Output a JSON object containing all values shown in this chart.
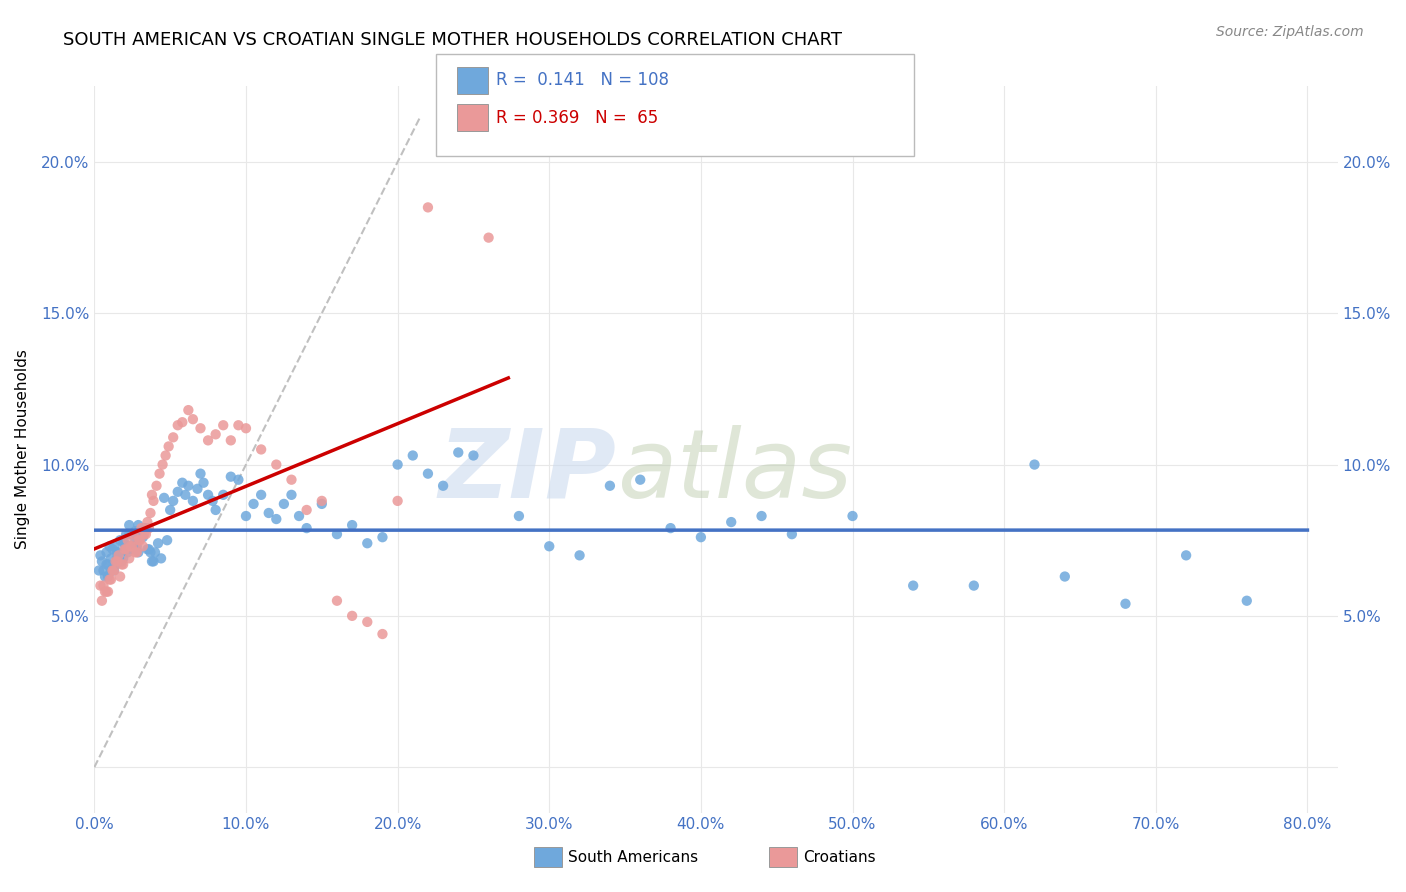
{
  "title": "SOUTH AMERICAN VS CROATIAN SINGLE MOTHER HOUSEHOLDS CORRELATION CHART",
  "source": "Source: ZipAtlas.com",
  "ylabel": "Single Mother Households",
  "south_american_color": "#6fa8dc",
  "croatian_color": "#ea9999",
  "trend_sa_color": "#4472c4",
  "trend_cr_color": "#cc0000",
  "diagonal_color": "#c0c0c0",
  "background_color": "#ffffff",
  "grid_color": "#e8e8e8",
  "xlim": [
    0,
    0.82
  ],
  "ylim": [
    -0.015,
    0.225
  ],
  "xticks": [
    0.0,
    0.1,
    0.2,
    0.3,
    0.4,
    0.5,
    0.6,
    0.7,
    0.8
  ],
  "yticks": [
    0.0,
    0.05,
    0.1,
    0.15,
    0.2
  ],
  "xtick_labels": [
    "0.0%",
    "10.0%",
    "20.0%",
    "30.0%",
    "40.0%",
    "50.0%",
    "60.0%",
    "70.0%",
    "80.0%"
  ],
  "ytick_labels": [
    "",
    "5.0%",
    "10.0%",
    "15.0%",
    "20.0%"
  ],
  "tick_color": "#4472c4",
  "R_sa": 0.141,
  "N_sa": 108,
  "R_cr": 0.369,
  "N_cr": 65,
  "south_americans_x": [
    0.005,
    0.006,
    0.007,
    0.008,
    0.009,
    0.01,
    0.011,
    0.012,
    0.013,
    0.014,
    0.015,
    0.016,
    0.017,
    0.018,
    0.019,
    0.02,
    0.021,
    0.022,
    0.023,
    0.024,
    0.025,
    0.026,
    0.027,
    0.028,
    0.029,
    0.03,
    0.031,
    0.032,
    0.033,
    0.034,
    0.035,
    0.036,
    0.037,
    0.038,
    0.039,
    0.04,
    0.042,
    0.044,
    0.046,
    0.048,
    0.05,
    0.052,
    0.055,
    0.058,
    0.06,
    0.062,
    0.065,
    0.068,
    0.07,
    0.072,
    0.075,
    0.078,
    0.08,
    0.085,
    0.09,
    0.095,
    0.1,
    0.105,
    0.11,
    0.115,
    0.12,
    0.125,
    0.13,
    0.135,
    0.14,
    0.15,
    0.16,
    0.17,
    0.18,
    0.19,
    0.2,
    0.21,
    0.22,
    0.23,
    0.24,
    0.25,
    0.28,
    0.3,
    0.32,
    0.34,
    0.36,
    0.38,
    0.4,
    0.42,
    0.44,
    0.46,
    0.5,
    0.54,
    0.58,
    0.62,
    0.64,
    0.68,
    0.72,
    0.76,
    0.003,
    0.004,
    0.008,
    0.009,
    0.011,
    0.013,
    0.015,
    0.017,
    0.019,
    0.021,
    0.023,
    0.025,
    0.027,
    0.029
  ],
  "south_americans_y": [
    0.068,
    0.065,
    0.063,
    0.071,
    0.067,
    0.073,
    0.069,
    0.072,
    0.065,
    0.067,
    0.069,
    0.071,
    0.068,
    0.068,
    0.074,
    0.074,
    0.072,
    0.071,
    0.077,
    0.073,
    0.077,
    0.073,
    0.078,
    0.073,
    0.08,
    0.078,
    0.077,
    0.076,
    0.079,
    0.079,
    0.072,
    0.072,
    0.071,
    0.068,
    0.068,
    0.071,
    0.074,
    0.069,
    0.089,
    0.075,
    0.085,
    0.088,
    0.091,
    0.094,
    0.09,
    0.093,
    0.088,
    0.092,
    0.097,
    0.094,
    0.09,
    0.088,
    0.085,
    0.09,
    0.096,
    0.095,
    0.083,
    0.087,
    0.09,
    0.084,
    0.082,
    0.087,
    0.09,
    0.083,
    0.079,
    0.087,
    0.077,
    0.08,
    0.074,
    0.076,
    0.1,
    0.103,
    0.097,
    0.093,
    0.104,
    0.103,
    0.083,
    0.073,
    0.07,
    0.093,
    0.095,
    0.079,
    0.076,
    0.081,
    0.083,
    0.077,
    0.083,
    0.06,
    0.06,
    0.1,
    0.063,
    0.054,
    0.07,
    0.055,
    0.065,
    0.07,
    0.067,
    0.063,
    0.065,
    0.073,
    0.071,
    0.075,
    0.069,
    0.077,
    0.08,
    0.072,
    0.075,
    0.071
  ],
  "croatians_x": [
    0.004,
    0.005,
    0.006,
    0.007,
    0.008,
    0.009,
    0.01,
    0.011,
    0.012,
    0.013,
    0.014,
    0.015,
    0.016,
    0.017,
    0.018,
    0.019,
    0.02,
    0.021,
    0.022,
    0.023,
    0.024,
    0.025,
    0.026,
    0.027,
    0.028,
    0.029,
    0.03,
    0.031,
    0.032,
    0.033,
    0.034,
    0.035,
    0.036,
    0.037,
    0.038,
    0.039,
    0.041,
    0.043,
    0.045,
    0.047,
    0.049,
    0.052,
    0.055,
    0.058,
    0.062,
    0.065,
    0.07,
    0.075,
    0.08,
    0.085,
    0.09,
    0.095,
    0.1,
    0.11,
    0.12,
    0.13,
    0.14,
    0.15,
    0.16,
    0.17,
    0.18,
    0.19,
    0.2,
    0.22,
    0.26
  ],
  "croatians_y": [
    0.06,
    0.055,
    0.06,
    0.058,
    0.058,
    0.058,
    0.062,
    0.062,
    0.065,
    0.065,
    0.068,
    0.068,
    0.07,
    0.063,
    0.067,
    0.067,
    0.072,
    0.072,
    0.075,
    0.069,
    0.073,
    0.073,
    0.077,
    0.071,
    0.071,
    0.075,
    0.075,
    0.079,
    0.073,
    0.077,
    0.077,
    0.081,
    0.079,
    0.084,
    0.09,
    0.088,
    0.093,
    0.097,
    0.1,
    0.103,
    0.106,
    0.109,
    0.113,
    0.114,
    0.118,
    0.115,
    0.112,
    0.108,
    0.11,
    0.113,
    0.108,
    0.113,
    0.112,
    0.105,
    0.1,
    0.095,
    0.085,
    0.088,
    0.055,
    0.05,
    0.048,
    0.044,
    0.088,
    0.185,
    0.175
  ]
}
